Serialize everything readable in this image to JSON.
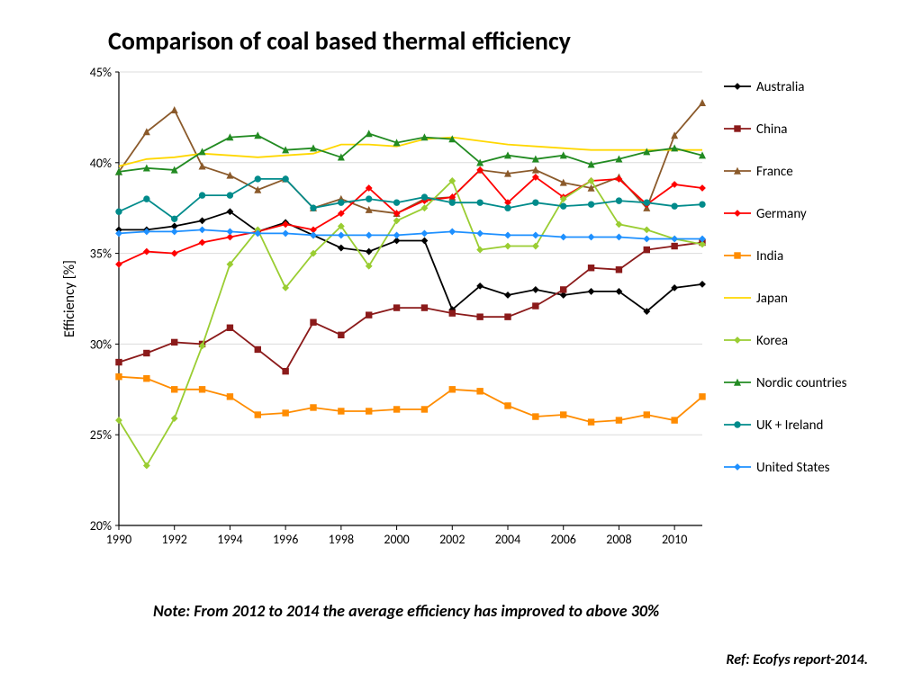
{
  "title": "Comparison of coal based thermal efficiency",
  "note": "Note: From  2012 to 2014 the average efficiency has improved to above 30%",
  "ref": "Ref: Ecofys report-2014.",
  "chart": {
    "type": "line",
    "ylabel": "Efficiency [%]",
    "ylim": [
      20,
      45
    ],
    "ytick_step": 5,
    "ytick_format": "%",
    "xlim": [
      1990,
      2011
    ],
    "xtick_step": 2,
    "xtick_labels": [
      "1990",
      "1992",
      "1994",
      "1996",
      "1998",
      "2000",
      "2002",
      "2004",
      "2006",
      "2008",
      "2010"
    ],
    "years": [
      1990,
      1991,
      1992,
      1993,
      1994,
      1995,
      1996,
      1997,
      1998,
      1999,
      2000,
      2001,
      2002,
      2003,
      2004,
      2005,
      2006,
      2007,
      2008,
      2009,
      2010,
      2011
    ],
    "background_color": "#ffffff",
    "grid_color": "#dcdcdc",
    "axis_color": "#000000",
    "label_fontsize": 14,
    "title_fontsize": 28,
    "marker_size": 3.2,
    "line_width": 1.8,
    "series": [
      {
        "name": "Australia",
        "color": "#000000",
        "marker": "diamond",
        "values": [
          36.3,
          36.3,
          36.5,
          36.8,
          37.3,
          36.2,
          36.7,
          36.0,
          35.3,
          35.1,
          35.7,
          35.7,
          31.9,
          33.2,
          32.7,
          33.0,
          32.7,
          32.9,
          32.9,
          31.8,
          33.1,
          33.3
        ]
      },
      {
        "name": "China",
        "color": "#8b1a1a",
        "marker": "square",
        "values": [
          29.0,
          29.5,
          30.1,
          30.0,
          30.9,
          29.7,
          28.5,
          31.2,
          30.5,
          31.6,
          32.0,
          32.0,
          31.7,
          31.5,
          31.5,
          32.1,
          33.0,
          34.2,
          34.1,
          35.2,
          35.4,
          35.6
        ]
      },
      {
        "name": "France",
        "color": "#8b5a2b",
        "marker": "triangle",
        "values": [
          39.5,
          41.7,
          42.9,
          39.8,
          39.3,
          38.5,
          39.1,
          37.5,
          38.0,
          37.4,
          37.2,
          38.0,
          38.1,
          39.6,
          39.4,
          39.6,
          38.9,
          38.6,
          39.2,
          37.5,
          41.5,
          43.3
        ]
      },
      {
        "name": "Germany",
        "color": "#ff0000",
        "marker": "diamond",
        "values": [
          34.4,
          35.1,
          35.0,
          35.6,
          35.9,
          36.2,
          36.6,
          36.3,
          37.2,
          38.6,
          37.2,
          37.9,
          38.1,
          39.6,
          37.8,
          39.2,
          38.1,
          39.0,
          39.1,
          37.7,
          38.8,
          38.6
        ]
      },
      {
        "name": "India",
        "color": "#ff8c00",
        "marker": "square",
        "values": [
          28.2,
          28.1,
          27.5,
          27.5,
          27.1,
          26.1,
          26.2,
          26.5,
          26.3,
          26.3,
          26.4,
          26.4,
          27.5,
          27.4,
          26.6,
          26.0,
          26.1,
          25.7,
          25.8,
          26.1,
          25.8,
          27.1
        ]
      },
      {
        "name": "Japan",
        "color": "#ffd700",
        "marker": "none",
        "values": [
          39.8,
          40.2,
          40.3,
          40.5,
          40.4,
          40.3,
          40.4,
          40.5,
          41.0,
          41.0,
          40.9,
          41.3,
          41.4,
          41.2,
          41.0,
          40.9,
          40.8,
          40.7,
          40.7,
          40.7,
          40.7,
          40.7
        ]
      },
      {
        "name": "Korea",
        "color": "#9acd32",
        "marker": "diamond",
        "values": [
          25.8,
          23.3,
          25.9,
          29.9,
          34.4,
          36.3,
          33.1,
          35.0,
          36.5,
          34.3,
          36.8,
          37.5,
          39.0,
          35.2,
          35.4,
          35.4,
          38.0,
          39.0,
          36.6,
          36.3,
          35.8,
          35.5
        ]
      },
      {
        "name": "Nordic countries",
        "color": "#228b22",
        "marker": "triangle",
        "values": [
          39.5,
          39.7,
          39.6,
          40.6,
          41.4,
          41.5,
          40.7,
          40.8,
          40.3,
          41.6,
          41.1,
          41.4,
          41.3,
          40.0,
          40.4,
          40.2,
          40.4,
          39.9,
          40.2,
          40.6,
          40.8,
          40.4
        ]
      },
      {
        "name": "UK + Ireland",
        "color": "#008b8b",
        "marker": "circle",
        "values": [
          37.3,
          38.0,
          36.9,
          38.2,
          38.2,
          39.1,
          39.1,
          37.5,
          37.8,
          38.0,
          37.8,
          38.1,
          37.8,
          37.8,
          37.5,
          37.8,
          37.6,
          37.7,
          37.9,
          37.8,
          37.6,
          37.7
        ]
      },
      {
        "name": "United States",
        "color": "#1e90ff",
        "marker": "diamond",
        "values": [
          36.1,
          36.2,
          36.2,
          36.3,
          36.2,
          36.1,
          36.1,
          36.0,
          36.0,
          36.0,
          36.0,
          36.1,
          36.2,
          36.1,
          36.0,
          36.0,
          35.9,
          35.9,
          35.9,
          35.8,
          35.8,
          35.8
        ]
      }
    ]
  }
}
